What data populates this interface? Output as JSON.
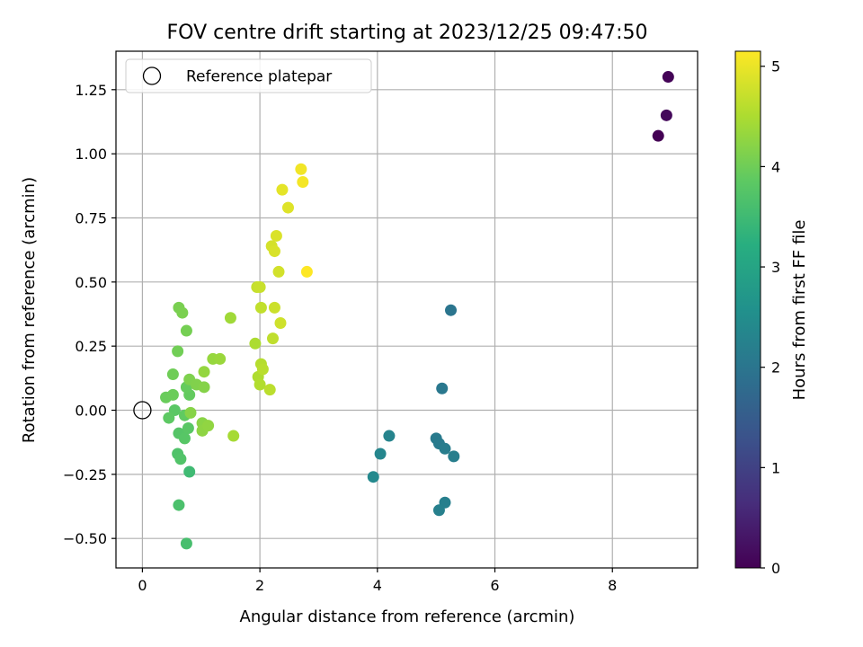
{
  "chart_data": {
    "type": "scatter",
    "title": "FOV centre drift starting at 2023/12/25 09:47:50",
    "xlabel": "Angular distance from reference (arcmin)",
    "ylabel": "Rotation from reference (arcmin)",
    "xlim": [
      -0.45,
      9.45
    ],
    "ylim": [
      -0.615,
      1.4
    ],
    "xticks": [
      0,
      2,
      4,
      6,
      8
    ],
    "xtick_labels": [
      "0",
      "2",
      "4",
      "6",
      "8"
    ],
    "yticks": [
      -0.5,
      -0.25,
      0.0,
      0.25,
      0.5,
      0.75,
      1.0,
      1.25
    ],
    "ytick_labels": [
      "−0.50",
      "−0.25",
      "0.00",
      "0.25",
      "0.50",
      "0.75",
      "1.00",
      "1.25"
    ],
    "grid": true,
    "colormap": "viridis",
    "colorbar": {
      "label": "Hours from first FF file",
      "range": [
        0,
        5.15
      ],
      "ticks": [
        0,
        1,
        2,
        3,
        4,
        5
      ],
      "tick_labels": [
        "0",
        "1",
        "2",
        "3",
        "4",
        "5"
      ]
    },
    "legend": {
      "position": "upper-left",
      "entries": [
        {
          "label": "Reference platepar",
          "marker": "open-circle"
        }
      ]
    },
    "reference_point": {
      "x": 0,
      "y": 0
    },
    "points": [
      {
        "x": 8.78,
        "y": 1.07,
        "c": 0.0
      },
      {
        "x": 8.95,
        "y": 1.3,
        "c": 0.05
      },
      {
        "x": 8.92,
        "y": 1.15,
        "c": 0.1
      },
      {
        "x": 5.25,
        "y": 0.39,
        "c": 2.0
      },
      {
        "x": 5.1,
        "y": 0.085,
        "c": 2.05
      },
      {
        "x": 5.0,
        "y": -0.11,
        "c": 2.1
      },
      {
        "x": 5.05,
        "y": -0.13,
        "c": 2.12
      },
      {
        "x": 5.15,
        "y": -0.15,
        "c": 2.15
      },
      {
        "x": 5.3,
        "y": -0.18,
        "c": 2.18
      },
      {
        "x": 5.15,
        "y": -0.36,
        "c": 2.2
      },
      {
        "x": 5.05,
        "y": -0.39,
        "c": 2.22
      },
      {
        "x": 4.2,
        "y": -0.1,
        "c": 2.3
      },
      {
        "x": 4.05,
        "y": -0.17,
        "c": 2.35
      },
      {
        "x": 3.93,
        "y": -0.26,
        "c": 2.4
      },
      {
        "x": 0.8,
        "y": -0.24,
        "c": 3.5
      },
      {
        "x": 0.75,
        "y": -0.52,
        "c": 3.6
      },
      {
        "x": 0.62,
        "y": -0.37,
        "c": 3.65
      },
      {
        "x": 0.6,
        "y": -0.17,
        "c": 3.7
      },
      {
        "x": 0.65,
        "y": -0.19,
        "c": 3.72
      },
      {
        "x": 0.62,
        "y": -0.09,
        "c": 3.75
      },
      {
        "x": 0.72,
        "y": -0.11,
        "c": 3.78
      },
      {
        "x": 0.78,
        "y": -0.07,
        "c": 3.8
      },
      {
        "x": 0.55,
        "y": 0.0,
        "c": 3.82
      },
      {
        "x": 0.45,
        "y": -0.03,
        "c": 3.85
      },
      {
        "x": 0.72,
        "y": -0.02,
        "c": 3.88
      },
      {
        "x": 0.8,
        "y": 0.06,
        "c": 3.9
      },
      {
        "x": 0.75,
        "y": 0.09,
        "c": 3.92
      },
      {
        "x": 0.4,
        "y": 0.05,
        "c": 3.95
      },
      {
        "x": 0.52,
        "y": 0.06,
        "c": 3.97
      },
      {
        "x": 0.52,
        "y": 0.14,
        "c": 4.0
      },
      {
        "x": 0.6,
        "y": 0.23,
        "c": 4.02
      },
      {
        "x": 0.75,
        "y": 0.31,
        "c": 4.05
      },
      {
        "x": 0.62,
        "y": 0.4,
        "c": 4.08
      },
      {
        "x": 0.68,
        "y": 0.38,
        "c": 4.1
      },
      {
        "x": 0.8,
        "y": 0.12,
        "c": 4.12
      },
      {
        "x": 0.92,
        "y": 0.1,
        "c": 4.15
      },
      {
        "x": 1.05,
        "y": 0.09,
        "c": 4.18
      },
      {
        "x": 0.82,
        "y": -0.01,
        "c": 4.2
      },
      {
        "x": 1.02,
        "y": -0.05,
        "c": 4.22
      },
      {
        "x": 1.02,
        "y": -0.08,
        "c": 4.25
      },
      {
        "x": 1.12,
        "y": -0.06,
        "c": 4.28
      },
      {
        "x": 1.05,
        "y": 0.15,
        "c": 4.3
      },
      {
        "x": 1.2,
        "y": 0.2,
        "c": 4.32
      },
      {
        "x": 1.32,
        "y": 0.2,
        "c": 4.35
      },
      {
        "x": 1.5,
        "y": 0.36,
        "c": 4.4
      },
      {
        "x": 1.55,
        "y": -0.1,
        "c": 4.45
      },
      {
        "x": 1.92,
        "y": 0.26,
        "c": 4.5
      },
      {
        "x": 1.97,
        "y": 0.13,
        "c": 4.52
      },
      {
        "x": 2.0,
        "y": 0.1,
        "c": 4.55
      },
      {
        "x": 2.02,
        "y": 0.18,
        "c": 4.57
      },
      {
        "x": 2.05,
        "y": 0.16,
        "c": 4.6
      },
      {
        "x": 2.17,
        "y": 0.08,
        "c": 4.62
      },
      {
        "x": 2.22,
        "y": 0.28,
        "c": 4.65
      },
      {
        "x": 2.02,
        "y": 0.4,
        "c": 4.67
      },
      {
        "x": 1.95,
        "y": 0.48,
        "c": 4.7
      },
      {
        "x": 2.0,
        "y": 0.48,
        "c": 4.72
      },
      {
        "x": 2.25,
        "y": 0.4,
        "c": 4.75
      },
      {
        "x": 2.35,
        "y": 0.34,
        "c": 4.77
      },
      {
        "x": 2.32,
        "y": 0.54,
        "c": 4.8
      },
      {
        "x": 2.2,
        "y": 0.64,
        "c": 4.82
      },
      {
        "x": 2.25,
        "y": 0.62,
        "c": 4.85
      },
      {
        "x": 2.28,
        "y": 0.68,
        "c": 4.87
      },
      {
        "x": 2.48,
        "y": 0.79,
        "c": 4.9
      },
      {
        "x": 2.38,
        "y": 0.86,
        "c": 4.95
      },
      {
        "x": 2.7,
        "y": 0.94,
        "c": 5.05
      },
      {
        "x": 2.73,
        "y": 0.89,
        "c": 5.08
      },
      {
        "x": 2.8,
        "y": 0.54,
        "c": 5.15
      }
    ]
  }
}
